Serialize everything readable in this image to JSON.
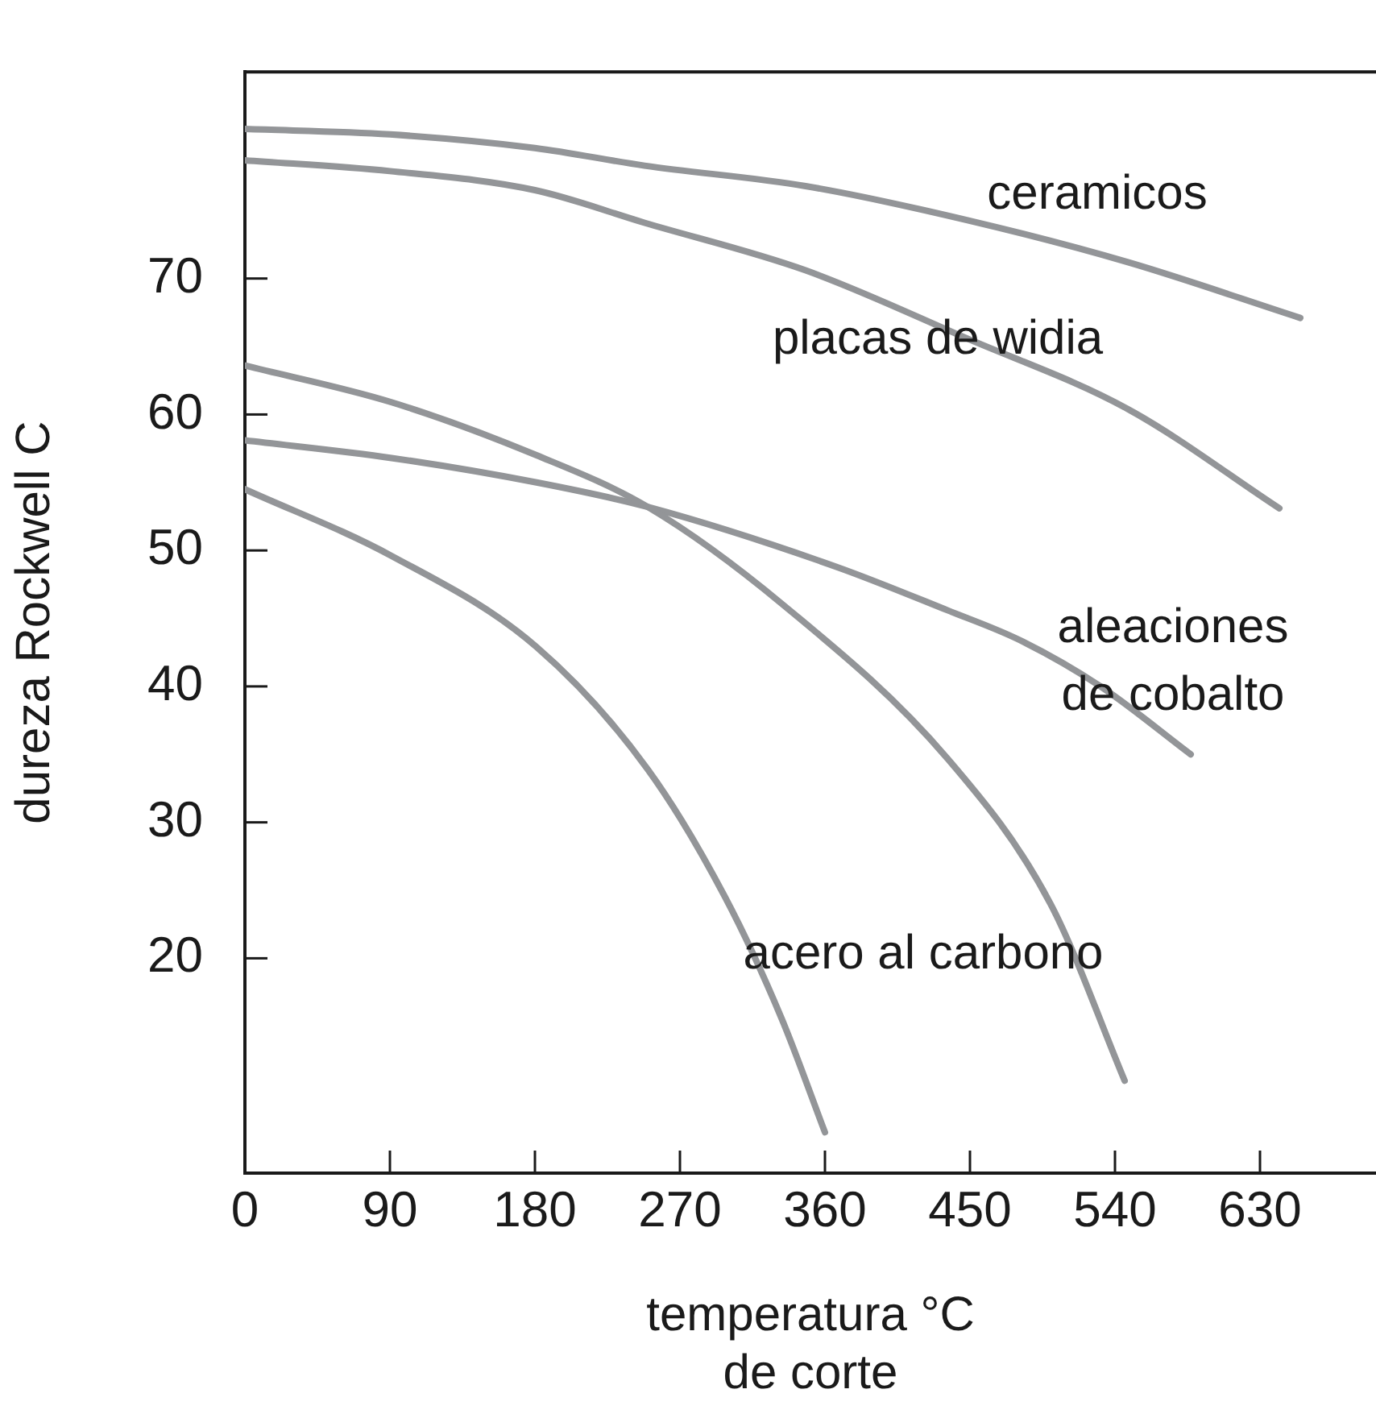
{
  "chart_data": {
    "type": "line",
    "xlabel": "temperatura °C\nde corte",
    "ylabel": "dureza Rockwell C",
    "xlim": [
      0,
      702
    ],
    "ylim": [
      4.2,
      85.2
    ],
    "xticks": [
      0,
      90,
      180,
      270,
      360,
      450,
      540,
      630
    ],
    "yticks": [
      20,
      30,
      40,
      50,
      60,
      70
    ],
    "grid": false,
    "legend": false,
    "marker": "none",
    "line_style": "solid",
    "series": [
      {
        "name": "ceramicos",
        "color": "#939598",
        "x": [
          0,
          90,
          180,
          248,
          348,
          448,
          548,
          655
        ],
        "values": [
          81.0,
          80.6,
          79.6,
          78.3,
          76.8,
          74.3,
          71.2,
          67.1
        ]
      },
      {
        "name": "placas de widia",
        "color": "#939598",
        "x": [
          0,
          90,
          180,
          248,
          348,
          448,
          548,
          642
        ],
        "values": [
          78.7,
          77.9,
          76.5,
          74.1,
          70.6,
          65.6,
          60.4,
          53.1
        ]
      },
      {
        "color": "#939598",
        "x": [
          0,
          91,
          181,
          250,
          333,
          436,
          500,
          546
        ],
        "values": [
          63.6,
          60.9,
          57.0,
          53.2,
          46.1,
          34.7,
          24.0,
          11.0
        ]
      },
      {
        "name": "aleaciones\nde cobalto",
        "color": "#939598",
        "x": [
          0,
          91,
          181,
          250,
          367,
          436,
          481,
          531,
          587
        ],
        "values": [
          58.1,
          56.8,
          55.0,
          53.2,
          48.8,
          45.6,
          43.4,
          40.0,
          35.0
        ]
      },
      {
        "name": "acero al carbono",
        "color": "#939598",
        "x": [
          0,
          91,
          181,
          250,
          298,
          333,
          360
        ],
        "values": [
          54.5,
          49.6,
          42.9,
          33.9,
          24.5,
          15.6,
          7.2
        ]
      }
    ]
  }
}
